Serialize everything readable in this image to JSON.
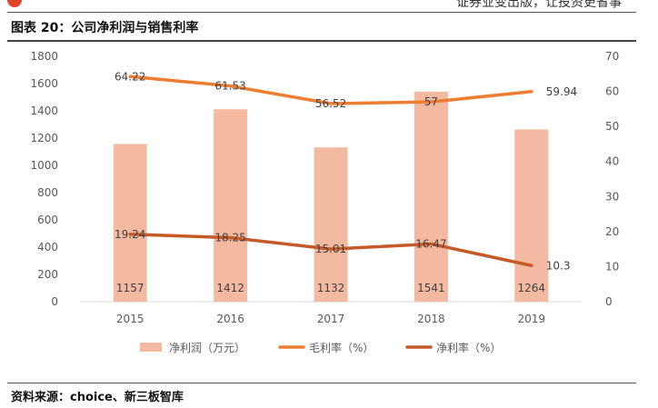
{
  "header": {
    "slogan": "证券业变出版，让投资更省事"
  },
  "figure": {
    "title": "图表 20：公司净利润与销售利率",
    "source": "资料来源：choice、新三板智库"
  },
  "colors": {
    "bar": "#f4b9a1",
    "gross_margin_line": "#ed7d31",
    "net_margin_line": "#c55a28",
    "axis_text": "#595959",
    "data_label": "#404040"
  },
  "chart_data": {
    "type": "bar+line",
    "categories": [
      "2015",
      "2016",
      "2017",
      "2018",
      "2019"
    ],
    "series": [
      {
        "name": "净利润（万元）",
        "type": "bar",
        "axis": "left",
        "values": [
          1157,
          1412,
          1132,
          1541,
          1264
        ],
        "labels": [
          "1157",
          "1412",
          "1132",
          "1541",
          "1264"
        ]
      },
      {
        "name": "毛利率（%）",
        "type": "line",
        "axis": "right",
        "values": [
          64.22,
          61.53,
          56.52,
          57,
          59.94
        ],
        "labels": [
          "64.22",
          "61.53",
          "56.52",
          "57",
          "59.94"
        ]
      },
      {
        "name": "净利率（%）",
        "type": "line",
        "axis": "right",
        "values": [
          19.24,
          18.25,
          15.01,
          16.47,
          10.3
        ],
        "labels": [
          "19.24",
          "18.25",
          "15.01",
          "16.47",
          "10.3"
        ]
      }
    ],
    "y_left": {
      "min": 0,
      "max": 1800,
      "step": 200,
      "ticks": [
        "0",
        "200",
        "400",
        "600",
        "800",
        "1000",
        "1200",
        "1400",
        "1600",
        "1800"
      ]
    },
    "y_right": {
      "min": 0,
      "max": 70,
      "step": 10,
      "ticks": [
        "0",
        "10",
        "20",
        "30",
        "40",
        "50",
        "60",
        "70"
      ]
    },
    "grid": false,
    "legend_position": "bottom"
  }
}
